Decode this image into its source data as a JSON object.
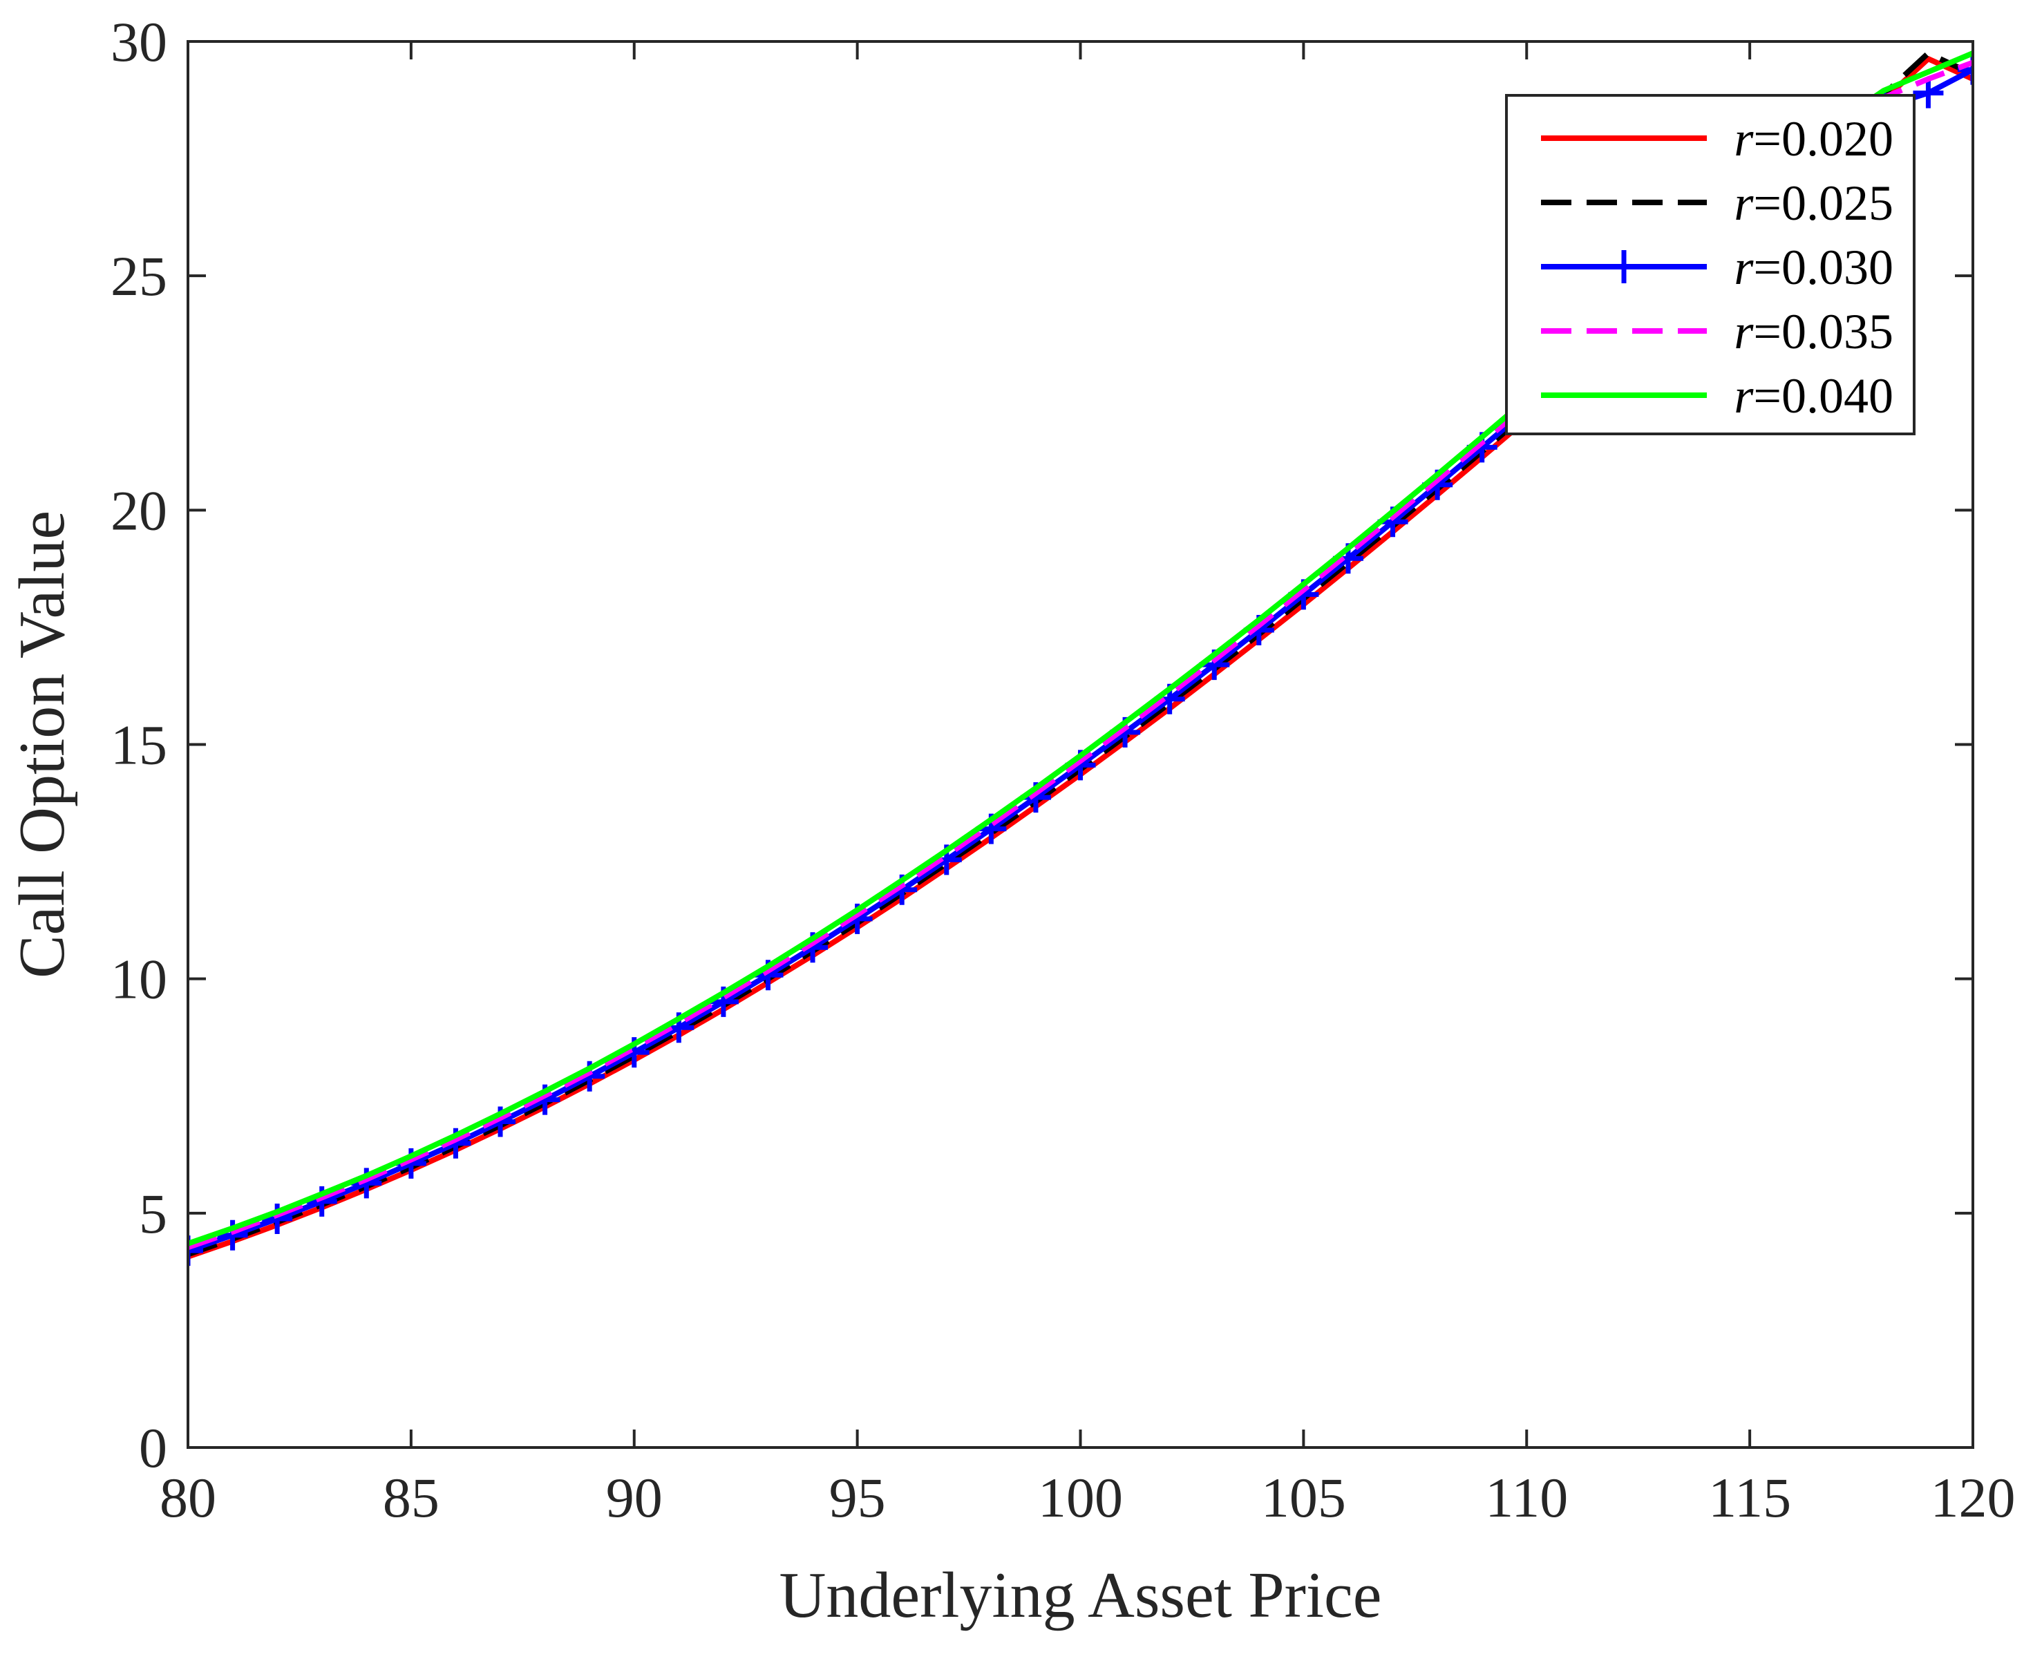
{
  "chart_data": {
    "type": "line",
    "title": "",
    "xlabel": "Underlying Asset Price",
    "ylabel": "Call Option Value",
    "xlim": [
      80,
      120
    ],
    "ylim": [
      0,
      30
    ],
    "xticks": [
      "80",
      "85",
      "90",
      "95",
      "100",
      "105",
      "110",
      "115",
      "120"
    ],
    "yticks": [
      "0",
      "5",
      "10",
      "15",
      "20",
      "25",
      "30"
    ],
    "grid": false,
    "legend_position": "top-right",
    "x": [
      80,
      81,
      82,
      83,
      84,
      85,
      86,
      87,
      88,
      89,
      90,
      91,
      92,
      93,
      94,
      95,
      96,
      97,
      98,
      99,
      100,
      101,
      102,
      103,
      104,
      105,
      106,
      107,
      108,
      109,
      110,
      111,
      112,
      113,
      114,
      115,
      116,
      117,
      118,
      119,
      120
    ],
    "series": [
      {
        "name": "r=0.020",
        "prefix": "r",
        "suffix": "=0.020",
        "color": "#ff0000",
        "style": "solid",
        "marker": "none",
        "values": [
          4.07,
          4.4,
          4.75,
          5.12,
          5.51,
          5.92,
          6.35,
          6.8,
          7.27,
          7.76,
          8.27,
          8.8,
          9.35,
          9.92,
          10.5,
          11.1,
          11.72,
          12.36,
          13.01,
          13.68,
          14.36,
          15.06,
          15.77,
          16.5,
          17.24,
          17.99,
          18.76,
          19.54,
          20.33,
          21.13,
          21.94,
          22.76,
          23.59,
          24.43,
          25.28,
          26.14,
          27.0,
          27.87,
          28.75,
          29.63,
          29.2
        ]
      },
      {
        "name": "r=0.025",
        "prefix": "r",
        "suffix": "=0.025",
        "color": "#000000",
        "style": "dashed",
        "marker": "none",
        "values": [
          4.12,
          4.45,
          4.81,
          5.18,
          5.57,
          5.98,
          6.42,
          6.87,
          7.34,
          7.84,
          8.35,
          8.88,
          9.43,
          10.0,
          10.59,
          11.19,
          11.82,
          12.46,
          13.11,
          13.78,
          14.47,
          15.17,
          15.88,
          16.61,
          17.35,
          18.11,
          18.88,
          19.66,
          20.45,
          21.25,
          22.06,
          22.88,
          23.71,
          24.55,
          25.4,
          26.26,
          27.12,
          27.99,
          28.87,
          29.75,
          29.3
        ]
      },
      {
        "name": "r=0.030",
        "prefix": "r",
        "suffix": "=0.030",
        "color": "#0000ff",
        "style": "solid",
        "marker": "plus",
        "values": [
          4.2,
          4.53,
          4.88,
          5.25,
          5.64,
          6.06,
          6.49,
          6.95,
          7.42,
          7.92,
          8.43,
          8.96,
          9.51,
          10.08,
          10.67,
          11.28,
          11.9,
          12.54,
          13.2,
          13.87,
          14.56,
          15.26,
          15.97,
          16.7,
          17.44,
          18.2,
          18.97,
          19.75,
          20.54,
          21.34,
          22.15,
          22.97,
          23.8,
          24.64,
          25.49,
          26.35,
          27.21,
          28.08,
          28.6,
          28.9,
          29.4
        ]
      },
      {
        "name": "r=0.035",
        "prefix": "r",
        "suffix": "=0.035",
        "color": "#ff00ff",
        "style": "dashed",
        "marker": "none",
        "values": [
          4.27,
          4.6,
          4.96,
          5.33,
          5.72,
          6.14,
          6.57,
          7.03,
          7.51,
          8.0,
          8.52,
          9.05,
          9.6,
          10.17,
          10.76,
          11.37,
          11.99,
          12.63,
          13.29,
          13.96,
          14.65,
          15.35,
          16.07,
          16.8,
          17.54,
          18.3,
          19.07,
          19.85,
          20.64,
          21.44,
          22.25,
          23.07,
          23.9,
          24.74,
          25.59,
          26.45,
          27.31,
          28.18,
          28.8,
          29.2,
          29.55
        ]
      },
      {
        "name": "r=0.040",
        "prefix": "r",
        "suffix": "=0.040",
        "color": "#00ff00",
        "style": "solid",
        "marker": "none",
        "values": [
          4.35,
          4.68,
          5.03,
          5.41,
          5.8,
          6.22,
          6.66,
          7.12,
          7.6,
          8.09,
          8.61,
          9.15,
          9.7,
          10.27,
          10.86,
          11.47,
          12.1,
          12.74,
          13.4,
          14.07,
          14.76,
          15.47,
          16.19,
          16.92,
          17.66,
          18.42,
          19.19,
          19.97,
          20.76,
          21.56,
          22.37,
          23.19,
          24.02,
          24.86,
          25.71,
          26.57,
          27.43,
          28.3,
          28.95,
          29.35,
          29.75
        ]
      }
    ]
  }
}
